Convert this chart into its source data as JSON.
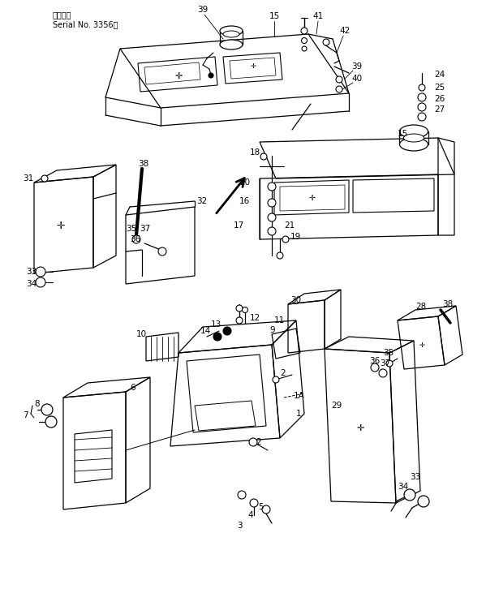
{
  "bg_color": "#ffffff",
  "line_color": "#000000",
  "fig_width": 5.99,
  "fig_height": 7.47,
  "dpi": 100,
  "header1": "適用号機",
  "header2": "Serial No. 3356～"
}
